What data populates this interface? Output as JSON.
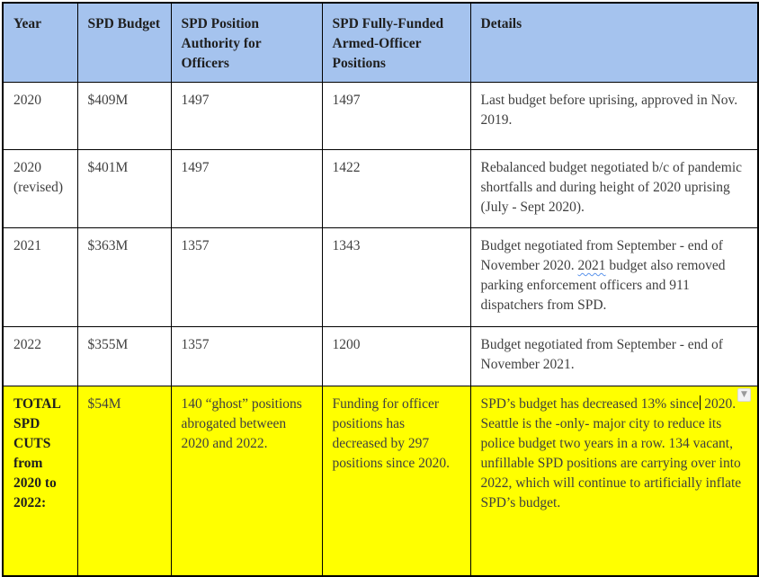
{
  "colors": {
    "header_bg": "#a5c3ee",
    "total_row_bg": "#ffff00",
    "border": "#000000",
    "body_text": "#3f3f3f",
    "strong_text": "#1f1f1f",
    "spellcheck_squiggle": "#5b94ec"
  },
  "icons": {
    "dropdown_glyph": "▼"
  },
  "table": {
    "headers": [
      "Year",
      "SPD Budget",
      "SPD Position Authority for Officers",
      "SPD Fully-Funded Armed-Officer Positions",
      "Details"
    ],
    "rows": [
      {
        "year": "2020",
        "budget": "$409M",
        "authority": "1497",
        "funded": "1497",
        "details": "Last budget before uprising, approved in Nov. 2019."
      },
      {
        "year": "2020 (revised)",
        "budget": "$401M",
        "authority": "1497",
        "funded": "1422",
        "details": "Rebalanced budget negotiated b/c of pandemic shortfalls and during height of 2020 uprising (July - Sept 2020)."
      },
      {
        "year": "2021",
        "budget": "$363M",
        "authority": "1357",
        "funded": "1343",
        "details_pre": "Budget negotiated from September - end of November 2020. ",
        "details_flagged_word": "2021",
        "details_post": " budget also removed parking enforcement officers and 911 dispatchers from SPD."
      },
      {
        "year": "2022",
        "budget": "$355M",
        "authority": "1357",
        "funded": "1200",
        "details": "Budget negotiated from September - end of November 2021."
      }
    ],
    "total_row": {
      "label": "TOTAL SPD CUTS from 2020 to 2022:",
      "budget": "$54M",
      "authority": "140 “ghost” positions abrogated between 2020 and 2022.",
      "funded": "Funding for officer positions has decreased by 297 positions since 2020.",
      "details_pre": "SPD’s budget has decreased 13% since",
      "details_post": " 2020. Seattle is the -only- major city to reduce its police budget two years in a row. 134 vacant, unfillable SPD positions are carrying over into 2022, which will continue to artificially inflate SPD’s budget."
    }
  }
}
